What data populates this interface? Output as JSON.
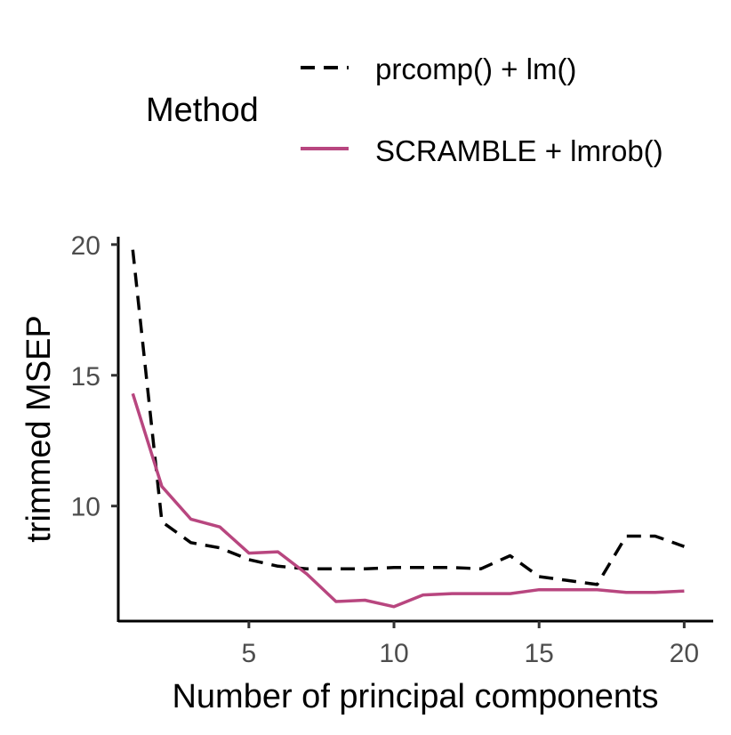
{
  "chart_data": {
    "type": "line",
    "xlabel": "Number of principal components",
    "ylabel": "trimmed MSEP",
    "xlim": [
      0.5,
      21
    ],
    "ylim": [
      5.6,
      20.3
    ],
    "xticks": [
      5,
      10,
      15,
      20
    ],
    "yticks": [
      10,
      15,
      20
    ],
    "grid": false,
    "legend": {
      "title": "Method",
      "position": "top"
    },
    "x": [
      1,
      2,
      3,
      4,
      5,
      6,
      7,
      8,
      9,
      10,
      11,
      12,
      13,
      14,
      15,
      16,
      17,
      18,
      19,
      20
    ],
    "series": [
      {
        "name": "prcomp() + lm()",
        "color": "#000000",
        "dash": "dashed",
        "values": [
          19.8,
          9.4,
          8.6,
          8.4,
          7.95,
          7.7,
          7.6,
          7.6,
          7.6,
          7.65,
          7.65,
          7.65,
          7.6,
          8.1,
          7.3,
          7.15,
          7.0,
          8.85,
          8.85,
          8.45
        ]
      },
      {
        "name": "SCRAMBLE + lmrob()",
        "color": "#B8467F",
        "dash": "solid",
        "values": [
          14.3,
          10.75,
          9.5,
          9.2,
          8.2,
          8.25,
          7.4,
          6.35,
          6.4,
          6.15,
          6.6,
          6.65,
          6.65,
          6.65,
          6.8,
          6.8,
          6.8,
          6.7,
          6.7,
          6.75
        ]
      }
    ]
  }
}
